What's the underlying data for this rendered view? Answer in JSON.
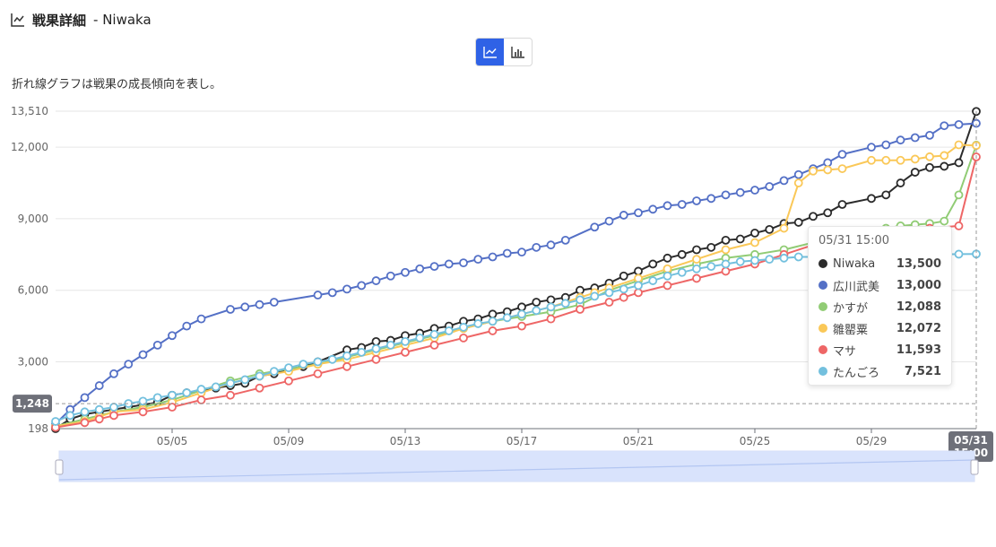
{
  "header": {
    "icon": "line-chart-icon",
    "title": "戦果詳細",
    "suffix": "- Niwaka"
  },
  "toggle": {
    "options": [
      "line-chart-icon",
      "bar-chart-icon"
    ],
    "active": 0,
    "active_color": "#2f62e6"
  },
  "description": "折れ線グラフは戦果の成長傾向を表し。",
  "tooltip": {
    "title": "05/31 15:00",
    "rows": [
      {
        "name": "Niwaka",
        "value": "13,500",
        "color": "#2b2b2b"
      },
      {
        "name": "広川武美",
        "value": "13,000",
        "color": "#5470c6"
      },
      {
        "name": "かすが",
        "value": "12,088",
        "color": "#91cc75"
      },
      {
        "name": "雛罌粟",
        "value": "12,072",
        "color": "#fac858"
      },
      {
        "name": "マサ",
        "value": "11,593",
        "color": "#ee6666"
      },
      {
        "name": "たんごろ",
        "value": "7,521",
        "color": "#73c0de"
      }
    ]
  },
  "chart_data": {
    "type": "line",
    "x_start": "05/01",
    "x_end": "05/31",
    "x_ticks": [
      "05/05",
      "05/09",
      "05/13",
      "05/17",
      "05/21",
      "05/25",
      "05/29"
    ],
    "y_ticks": [
      "198",
      "3,000",
      "6,000",
      "9,000",
      "12,000",
      "13,510"
    ],
    "y_min": 198,
    "y_max": 13510,
    "y_tick_values": [
      198,
      3000,
      6000,
      9000,
      12000,
      13510
    ],
    "axis_pointer": {
      "y_label": "1,248",
      "y_value": 1248,
      "x_label": "05/31 15:00"
    },
    "series": [
      {
        "name": "Niwaka",
        "color": "#2b2b2b",
        "points": [
          [
            0,
            198
          ],
          [
            0.5,
            600
          ],
          [
            1,
            800
          ],
          [
            1.5,
            900
          ],
          [
            2,
            1000
          ],
          [
            2.5,
            1100
          ],
          [
            3,
            1200
          ],
          [
            3.5,
            1300
          ],
          [
            4,
            1600
          ],
          [
            4.5,
            1700
          ],
          [
            5,
            1800
          ],
          [
            5.5,
            1900
          ],
          [
            6,
            2000
          ],
          [
            6.5,
            2100
          ],
          [
            7,
            2400
          ],
          [
            7.5,
            2500
          ],
          [
            8,
            2700
          ],
          [
            8.5,
            2800
          ],
          [
            9,
            3000
          ],
          [
            10,
            3500
          ],
          [
            10.5,
            3600
          ],
          [
            11,
            3850
          ],
          [
            11.5,
            3900
          ],
          [
            12,
            4100
          ],
          [
            12.5,
            4200
          ],
          [
            13,
            4400
          ],
          [
            13.5,
            4500
          ],
          [
            14,
            4700
          ],
          [
            14.5,
            4800
          ],
          [
            15,
            5000
          ],
          [
            15.5,
            5100
          ],
          [
            16,
            5300
          ],
          [
            16.5,
            5500
          ],
          [
            17,
            5600
          ],
          [
            17.5,
            5700
          ],
          [
            18,
            6000
          ],
          [
            18.5,
            6100
          ],
          [
            19,
            6300
          ],
          [
            19.5,
            6600
          ],
          [
            20,
            6800
          ],
          [
            20.5,
            7100
          ],
          [
            21,
            7350
          ],
          [
            21.5,
            7500
          ],
          [
            22,
            7700
          ],
          [
            22.5,
            7800
          ],
          [
            23,
            8100
          ],
          [
            23.5,
            8150
          ],
          [
            24,
            8400
          ],
          [
            24.5,
            8550
          ],
          [
            25,
            8800
          ],
          [
            25.5,
            8850
          ],
          [
            26,
            9100
          ],
          [
            26.5,
            9250
          ],
          [
            27,
            9600
          ],
          [
            28,
            9850
          ],
          [
            28.5,
            10000
          ],
          [
            29,
            10500
          ],
          [
            29.5,
            10950
          ],
          [
            30,
            11150
          ],
          [
            30.5,
            11200
          ],
          [
            31,
            11350
          ],
          [
            31.6,
            13500
          ]
        ]
      },
      {
        "name": "広川武美",
        "color": "#5470c6",
        "points": [
          [
            0,
            400
          ],
          [
            0.5,
            1000
          ],
          [
            1,
            1500
          ],
          [
            1.5,
            2000
          ],
          [
            2,
            2500
          ],
          [
            2.5,
            2900
          ],
          [
            3,
            3300
          ],
          [
            3.5,
            3700
          ],
          [
            4,
            4100
          ],
          [
            4.5,
            4500
          ],
          [
            5,
            4800
          ],
          [
            6,
            5200
          ],
          [
            6.5,
            5300
          ],
          [
            7,
            5400
          ],
          [
            7.5,
            5500
          ],
          [
            9,
            5800
          ],
          [
            9.5,
            5900
          ],
          [
            10,
            6050
          ],
          [
            10.5,
            6200
          ],
          [
            11,
            6400
          ],
          [
            11.5,
            6600
          ],
          [
            12,
            6750
          ],
          [
            12.5,
            6900
          ],
          [
            13,
            7000
          ],
          [
            13.5,
            7100
          ],
          [
            14,
            7150
          ],
          [
            14.5,
            7300
          ],
          [
            15,
            7400
          ],
          [
            15.5,
            7550
          ],
          [
            16,
            7600
          ],
          [
            16.5,
            7800
          ],
          [
            17,
            7900
          ],
          [
            17.5,
            8100
          ],
          [
            18.5,
            8650
          ],
          [
            19,
            8900
          ],
          [
            19.5,
            9150
          ],
          [
            20,
            9250
          ],
          [
            20.5,
            9400
          ],
          [
            21,
            9550
          ],
          [
            21.5,
            9600
          ],
          [
            22,
            9750
          ],
          [
            22.5,
            9850
          ],
          [
            23,
            10000
          ],
          [
            23.5,
            10100
          ],
          [
            24,
            10200
          ],
          [
            24.5,
            10350
          ],
          [
            25,
            10600
          ],
          [
            25.5,
            10850
          ],
          [
            26,
            11100
          ],
          [
            26.5,
            11350
          ],
          [
            27,
            11700
          ],
          [
            28,
            12000
          ],
          [
            28.5,
            12100
          ],
          [
            29,
            12300
          ],
          [
            29.5,
            12400
          ],
          [
            30,
            12500
          ],
          [
            30.5,
            12900
          ],
          [
            31,
            12950
          ],
          [
            31.6,
            13000
          ]
        ]
      },
      {
        "name": "かすが",
        "color": "#91cc75",
        "points": [
          [
            0,
            300
          ],
          [
            1,
            600
          ],
          [
            2,
            900
          ],
          [
            3,
            1100
          ],
          [
            4,
            1400
          ],
          [
            5,
            1800
          ],
          [
            6,
            2200
          ],
          [
            7,
            2500
          ],
          [
            8,
            2700
          ],
          [
            9,
            2900
          ],
          [
            10,
            3200
          ],
          [
            11,
            3500
          ],
          [
            12,
            3800
          ],
          [
            13,
            4100
          ],
          [
            14,
            4400
          ],
          [
            15,
            4700
          ],
          [
            16,
            4900
          ],
          [
            17,
            5100
          ],
          [
            18,
            5400
          ],
          [
            19,
            6000
          ],
          [
            20,
            6400
          ],
          [
            21,
            6800
          ],
          [
            22,
            7100
          ],
          [
            23,
            7350
          ],
          [
            24,
            7500
          ],
          [
            25,
            7700
          ],
          [
            26,
            8000
          ],
          [
            26.5,
            8100
          ],
          [
            27,
            8200
          ],
          [
            28,
            8500
          ],
          [
            28.5,
            8600
          ],
          [
            29,
            8700
          ],
          [
            29.5,
            8750
          ],
          [
            30,
            8800
          ],
          [
            30.5,
            8900
          ],
          [
            31,
            10000
          ],
          [
            31.6,
            12088
          ]
        ]
      },
      {
        "name": "雛罌粟",
        "color": "#fac858",
        "points": [
          [
            0,
            300
          ],
          [
            1,
            500
          ],
          [
            1.5,
            700
          ],
          [
            2,
            900
          ],
          [
            3,
            1000
          ],
          [
            4,
            1300
          ],
          [
            5,
            1700
          ],
          [
            6,
            2100
          ],
          [
            7,
            2400
          ],
          [
            8,
            2600
          ],
          [
            9,
            2900
          ],
          [
            10,
            3100
          ],
          [
            11,
            3400
          ],
          [
            12,
            3700
          ],
          [
            13,
            4000
          ],
          [
            14,
            4400
          ],
          [
            15,
            4700
          ],
          [
            16,
            5000
          ],
          [
            17,
            5300
          ],
          [
            18,
            5700
          ],
          [
            18.5,
            5900
          ],
          [
            19,
            6100
          ],
          [
            20,
            6500
          ],
          [
            21,
            6900
          ],
          [
            22,
            7300
          ],
          [
            23,
            7700
          ],
          [
            24,
            8000
          ],
          [
            25,
            8600
          ],
          [
            25.5,
            10500
          ],
          [
            26,
            11000
          ],
          [
            26.5,
            11050
          ],
          [
            27,
            11100
          ],
          [
            28,
            11450
          ],
          [
            28.5,
            11450
          ],
          [
            29,
            11450
          ],
          [
            29.5,
            11500
          ],
          [
            30,
            11600
          ],
          [
            30.5,
            11650
          ],
          [
            31,
            12100
          ],
          [
            31.6,
            12072
          ]
        ]
      },
      {
        "name": "マサ",
        "color": "#ee6666",
        "points": [
          [
            0,
            250
          ],
          [
            1,
            450
          ],
          [
            1.5,
            600
          ],
          [
            2,
            750
          ],
          [
            3,
            900
          ],
          [
            4,
            1100
          ],
          [
            5,
            1400
          ],
          [
            6,
            1600
          ],
          [
            7,
            1900
          ],
          [
            8,
            2200
          ],
          [
            9,
            2500
          ],
          [
            10,
            2800
          ],
          [
            11,
            3100
          ],
          [
            12,
            3400
          ],
          [
            13,
            3700
          ],
          [
            14,
            4000
          ],
          [
            15,
            4300
          ],
          [
            16,
            4500
          ],
          [
            17,
            4800
          ],
          [
            18,
            5200
          ],
          [
            19,
            5500
          ],
          [
            19.5,
            5700
          ],
          [
            20,
            5900
          ],
          [
            21,
            6200
          ],
          [
            22,
            6500
          ],
          [
            23,
            6800
          ],
          [
            24,
            7100
          ],
          [
            25,
            7500
          ],
          [
            26,
            7900
          ],
          [
            27,
            8100
          ],
          [
            28,
            8300
          ],
          [
            29,
            8500
          ],
          [
            30,
            8600
          ],
          [
            31,
            8700
          ],
          [
            31.6,
            11593
          ]
        ]
      },
      {
        "name": "たんごろ",
        "color": "#73c0de",
        "points": [
          [
            0,
            500
          ],
          [
            0.5,
            750
          ],
          [
            1,
            900
          ],
          [
            1.5,
            1000
          ],
          [
            2,
            1100
          ],
          [
            2.5,
            1250
          ],
          [
            3,
            1350
          ],
          [
            3.5,
            1500
          ],
          [
            4,
            1600
          ],
          [
            4.5,
            1700
          ],
          [
            5,
            1850
          ],
          [
            5.5,
            1950
          ],
          [
            6,
            2100
          ],
          [
            6.5,
            2250
          ],
          [
            7,
            2400
          ],
          [
            7.5,
            2600
          ],
          [
            8,
            2750
          ],
          [
            8.5,
            2900
          ],
          [
            9,
            3000
          ],
          [
            9.5,
            3100
          ],
          [
            10,
            3250
          ],
          [
            10.5,
            3400
          ],
          [
            11,
            3550
          ],
          [
            11.5,
            3700
          ],
          [
            12,
            3850
          ],
          [
            12.5,
            4000
          ],
          [
            13,
            4150
          ],
          [
            13.5,
            4300
          ],
          [
            14,
            4450
          ],
          [
            14.5,
            4600
          ],
          [
            15,
            4700
          ],
          [
            15.5,
            4850
          ],
          [
            16,
            5000
          ],
          [
            16.5,
            5150
          ],
          [
            17,
            5300
          ],
          [
            17.5,
            5450
          ],
          [
            18,
            5600
          ],
          [
            18.5,
            5750
          ],
          [
            19,
            5900
          ],
          [
            19.5,
            6050
          ],
          [
            20,
            6200
          ],
          [
            20.5,
            6400
          ],
          [
            21,
            6600
          ],
          [
            21.5,
            6750
          ],
          [
            22,
            6900
          ],
          [
            22.5,
            7000
          ],
          [
            23,
            7100
          ],
          [
            23.5,
            7200
          ],
          [
            24,
            7250
          ],
          [
            24.5,
            7300
          ],
          [
            25,
            7350
          ],
          [
            25.5,
            7400
          ],
          [
            26,
            7400
          ],
          [
            26.5,
            7450
          ],
          [
            27,
            7450
          ],
          [
            27.5,
            7500
          ],
          [
            28,
            7500
          ],
          [
            28.5,
            7500
          ],
          [
            29,
            7500
          ],
          [
            29.5,
            7500
          ],
          [
            30,
            7500
          ],
          [
            30.5,
            7510
          ],
          [
            31,
            7515
          ],
          [
            31.6,
            7521
          ]
        ]
      }
    ]
  }
}
